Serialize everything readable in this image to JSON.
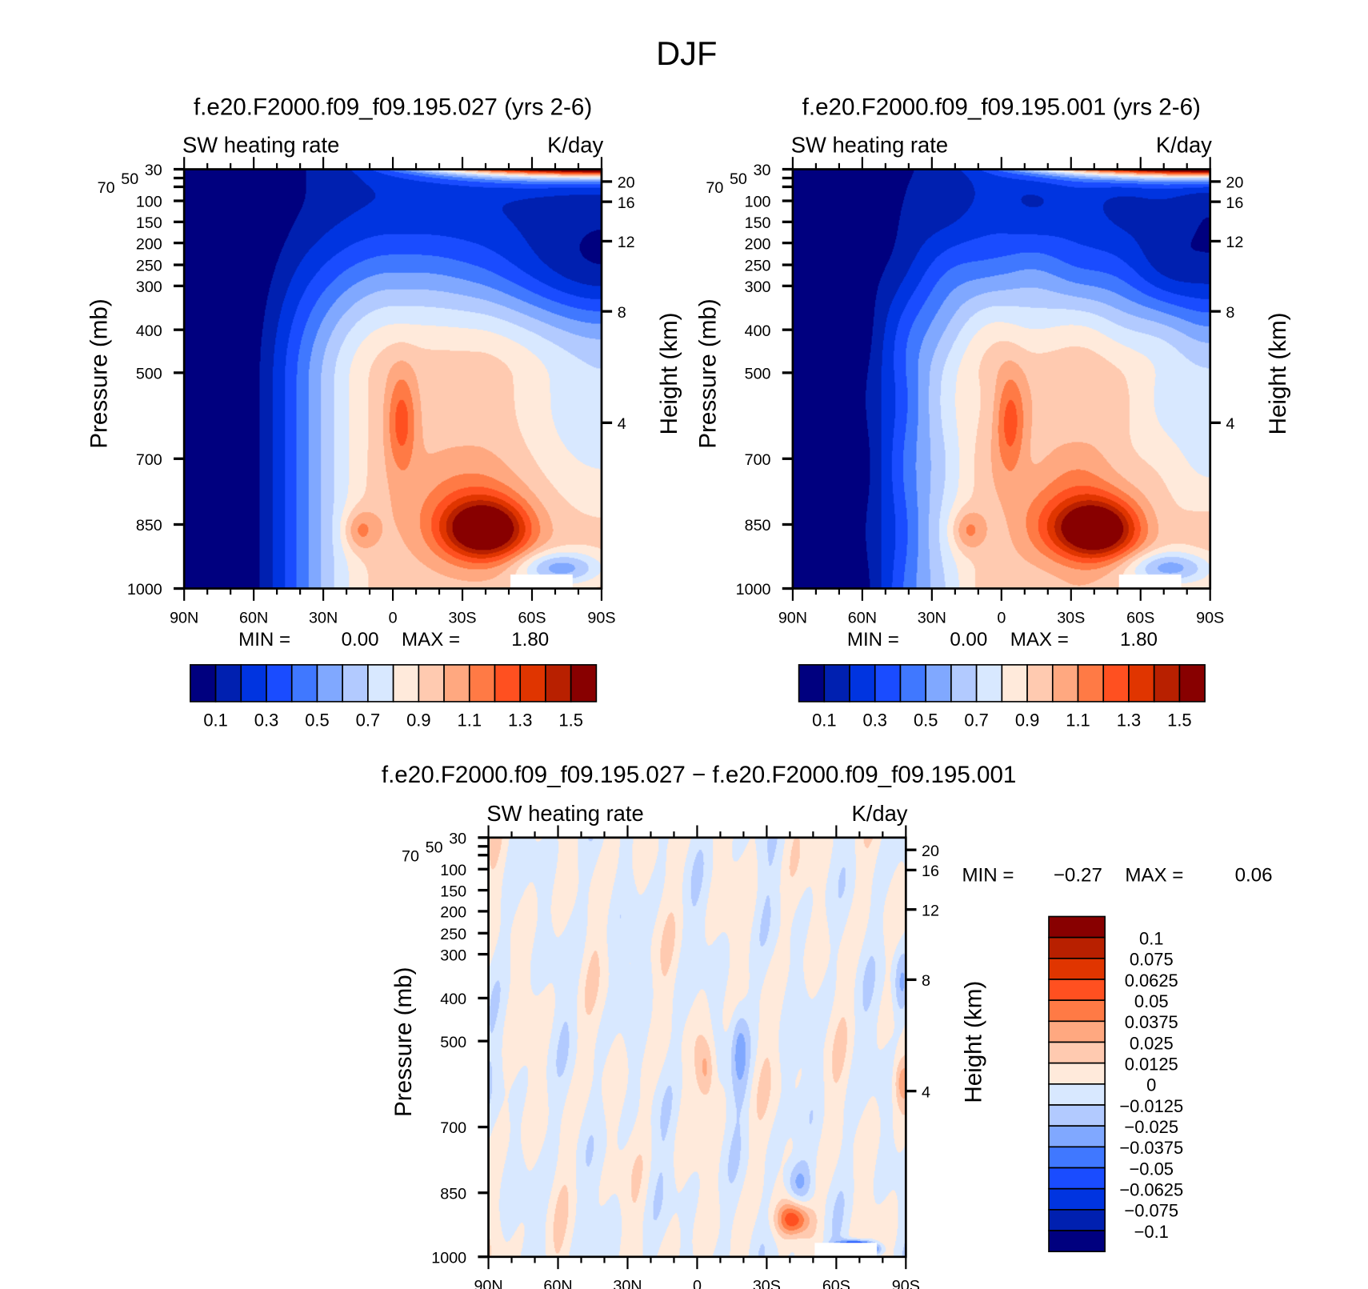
{
  "title": "DJF",
  "chart_data": [
    {
      "type": "contour",
      "title": "f.e20.F2000.f09_f09.195.027 (yrs 2-6)",
      "variable": "SW heating rate",
      "units": "K/day",
      "x_ticks": [
        "90N",
        "60N",
        "30N",
        "0",
        "30S",
        "60S",
        "90S"
      ],
      "x_range": [
        "90N",
        "90S"
      ],
      "ylabel": "Pressure (mb)",
      "y_ticks": [
        "30",
        "50",
        "70",
        "100",
        "150",
        "200",
        "250",
        "300",
        "400",
        "500",
        "700",
        "850",
        "1000"
      ],
      "y_range": [
        1000,
        30
      ],
      "y2label": "Height (km)",
      "y2_ticks": [
        "20",
        "16",
        "12",
        "8",
        "4"
      ],
      "min_label": "MIN =",
      "min": "0.00",
      "max_label": "MAX =",
      "max": "1.80",
      "colorbar": {
        "orientation": "horizontal",
        "levels": [
          0.1,
          0.2,
          0.3,
          0.4,
          0.5,
          0.6,
          0.7,
          0.8,
          0.9,
          1.0,
          1.1,
          1.2,
          1.3,
          1.4,
          1.5
        ],
        "labels": [
          "0.1",
          "0.3",
          "0.5",
          "0.7",
          "0.9",
          "1.1",
          "1.3",
          "1.5"
        ],
        "colors": [
          "#00007f",
          "#0020b0",
          "#0034e0",
          "#1a4cff",
          "#4078ff",
          "#80a8ff",
          "#b2caff",
          "#d8e8ff",
          "#ffeadb",
          "#ffcab0",
          "#ffa880",
          "#ff7a45",
          "#ff5020",
          "#e03500",
          "#b82000",
          "#880000"
        ]
      }
    },
    {
      "type": "contour",
      "title": "f.e20.F2000.f09_f09.195.001 (yrs 2-6)",
      "variable": "SW heating rate",
      "units": "K/day",
      "x_ticks": [
        "90N",
        "60N",
        "30N",
        "0",
        "30S",
        "60S",
        "90S"
      ],
      "x_range": [
        "90N",
        "90S"
      ],
      "ylabel": "Pressure (mb)",
      "y_ticks": [
        "30",
        "50",
        "70",
        "100",
        "150",
        "200",
        "250",
        "300",
        "400",
        "500",
        "700",
        "850",
        "1000"
      ],
      "y_range": [
        1000,
        30
      ],
      "y2label": "Height (km)",
      "y2_ticks": [
        "20",
        "16",
        "12",
        "8",
        "4"
      ],
      "min_label": "MIN =",
      "min": "0.00",
      "max_label": "MAX =",
      "max": "1.80",
      "colorbar": {
        "orientation": "horizontal",
        "levels": [
          0.1,
          0.2,
          0.3,
          0.4,
          0.5,
          0.6,
          0.7,
          0.8,
          0.9,
          1.0,
          1.1,
          1.2,
          1.3,
          1.4,
          1.5
        ],
        "labels": [
          "0.1",
          "0.3",
          "0.5",
          "0.7",
          "0.9",
          "1.1",
          "1.3",
          "1.5"
        ],
        "colors": [
          "#00007f",
          "#0020b0",
          "#0034e0",
          "#1a4cff",
          "#4078ff",
          "#80a8ff",
          "#b2caff",
          "#d8e8ff",
          "#ffeadb",
          "#ffcab0",
          "#ffa880",
          "#ff7a45",
          "#ff5020",
          "#e03500",
          "#b82000",
          "#880000"
        ]
      }
    },
    {
      "type": "contour",
      "title": "f.e20.F2000.f09_f09.195.027 − f.e20.F2000.f09_f09.195.001",
      "variable": "SW heating rate",
      "units": "K/day",
      "x_ticks": [
        "90N",
        "60N",
        "30N",
        "0",
        "30S",
        "60S",
        "90S"
      ],
      "x_range": [
        "90N",
        "90S"
      ],
      "ylabel": "Pressure (mb)",
      "y_ticks": [
        "30",
        "50",
        "70",
        "100",
        "150",
        "200",
        "250",
        "300",
        "400",
        "500",
        "700",
        "850",
        "1000"
      ],
      "y_range": [
        1000,
        30
      ],
      "y2label": "Height (km)",
      "y2_ticks": [
        "20",
        "16",
        "12",
        "8",
        "4"
      ],
      "min_label": "MIN =",
      "min": "−0.27",
      "max_label": "MAX =",
      "max": "0.06",
      "colorbar": {
        "orientation": "vertical",
        "levels": [
          -0.1,
          -0.075,
          -0.0625,
          -0.05,
          -0.0375,
          -0.025,
          -0.0125,
          0,
          0.0125,
          0.025,
          0.0375,
          0.05,
          0.0625,
          0.075,
          0.1
        ],
        "labels": [
          "0.1",
          "0.075",
          "0.0625",
          "0.05",
          "0.0375",
          "0.025",
          "0.0125",
          "0",
          "−0.0125",
          "−0.025",
          "−0.0375",
          "−0.05",
          "−0.0625",
          "−0.075",
          "−0.1"
        ],
        "colors": [
          "#00007f",
          "#0020b0",
          "#0034e0",
          "#1a4cff",
          "#4078ff",
          "#80a8ff",
          "#b2caff",
          "#d8e8ff",
          "#ffeadb",
          "#ffcab0",
          "#ffa880",
          "#ff7a45",
          "#ff5020",
          "#e03500",
          "#b82000",
          "#880000"
        ]
      }
    }
  ]
}
